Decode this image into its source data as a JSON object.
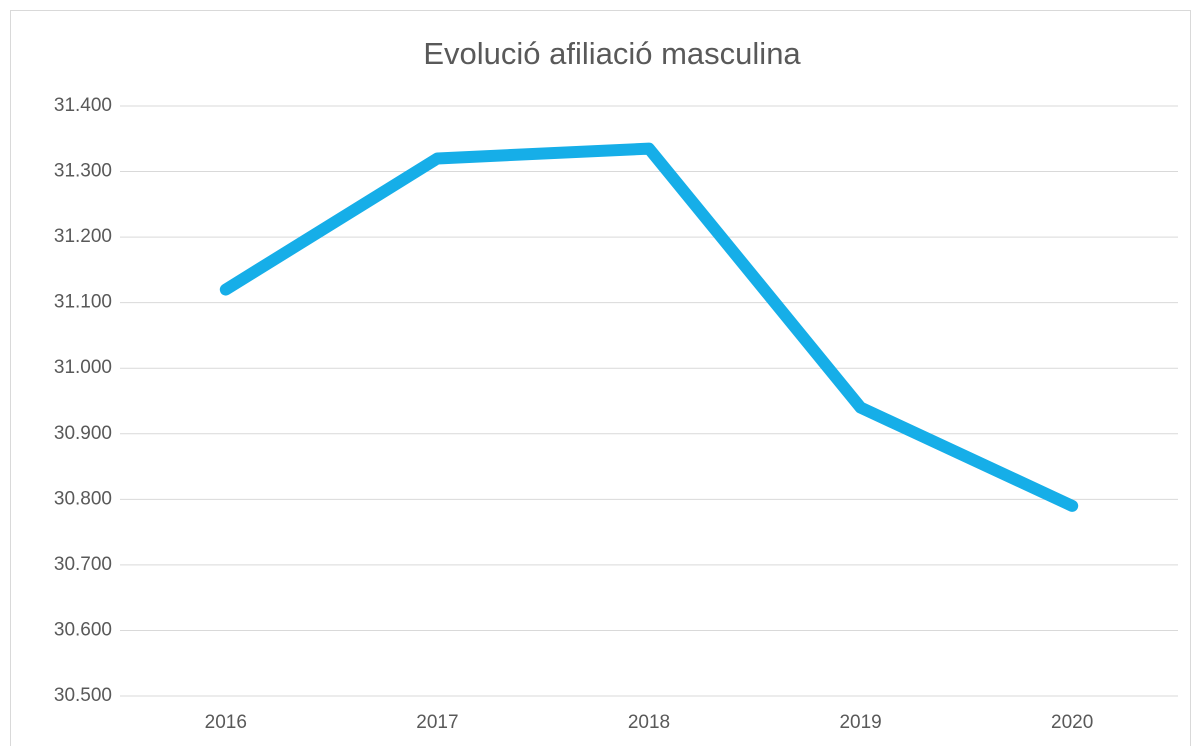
{
  "chart_data": {
    "type": "line",
    "title": "Evolució afiliació masculina",
    "categories": [
      "2016",
      "2017",
      "2018",
      "2019",
      "2020"
    ],
    "series": [
      {
        "name": "Afiliació masculina",
        "color": "#16aee8",
        "values": [
          31120,
          31320,
          31335,
          30940,
          30790
        ]
      }
    ],
    "ylim": [
      30500,
      31400
    ],
    "yticks": [
      {
        "value": 30500,
        "label": "30.500"
      },
      {
        "value": 30600,
        "label": "30.600"
      },
      {
        "value": 30700,
        "label": "30.700"
      },
      {
        "value": 30800,
        "label": "30.800"
      },
      {
        "value": 30900,
        "label": "30.900"
      },
      {
        "value": 31000,
        "label": "31.000"
      },
      {
        "value": 31100,
        "label": "31.100"
      },
      {
        "value": 31200,
        "label": "31.200"
      },
      {
        "value": 31300,
        "label": "31.300"
      },
      {
        "value": 31400,
        "label": "31.400"
      }
    ],
    "grid": true
  }
}
